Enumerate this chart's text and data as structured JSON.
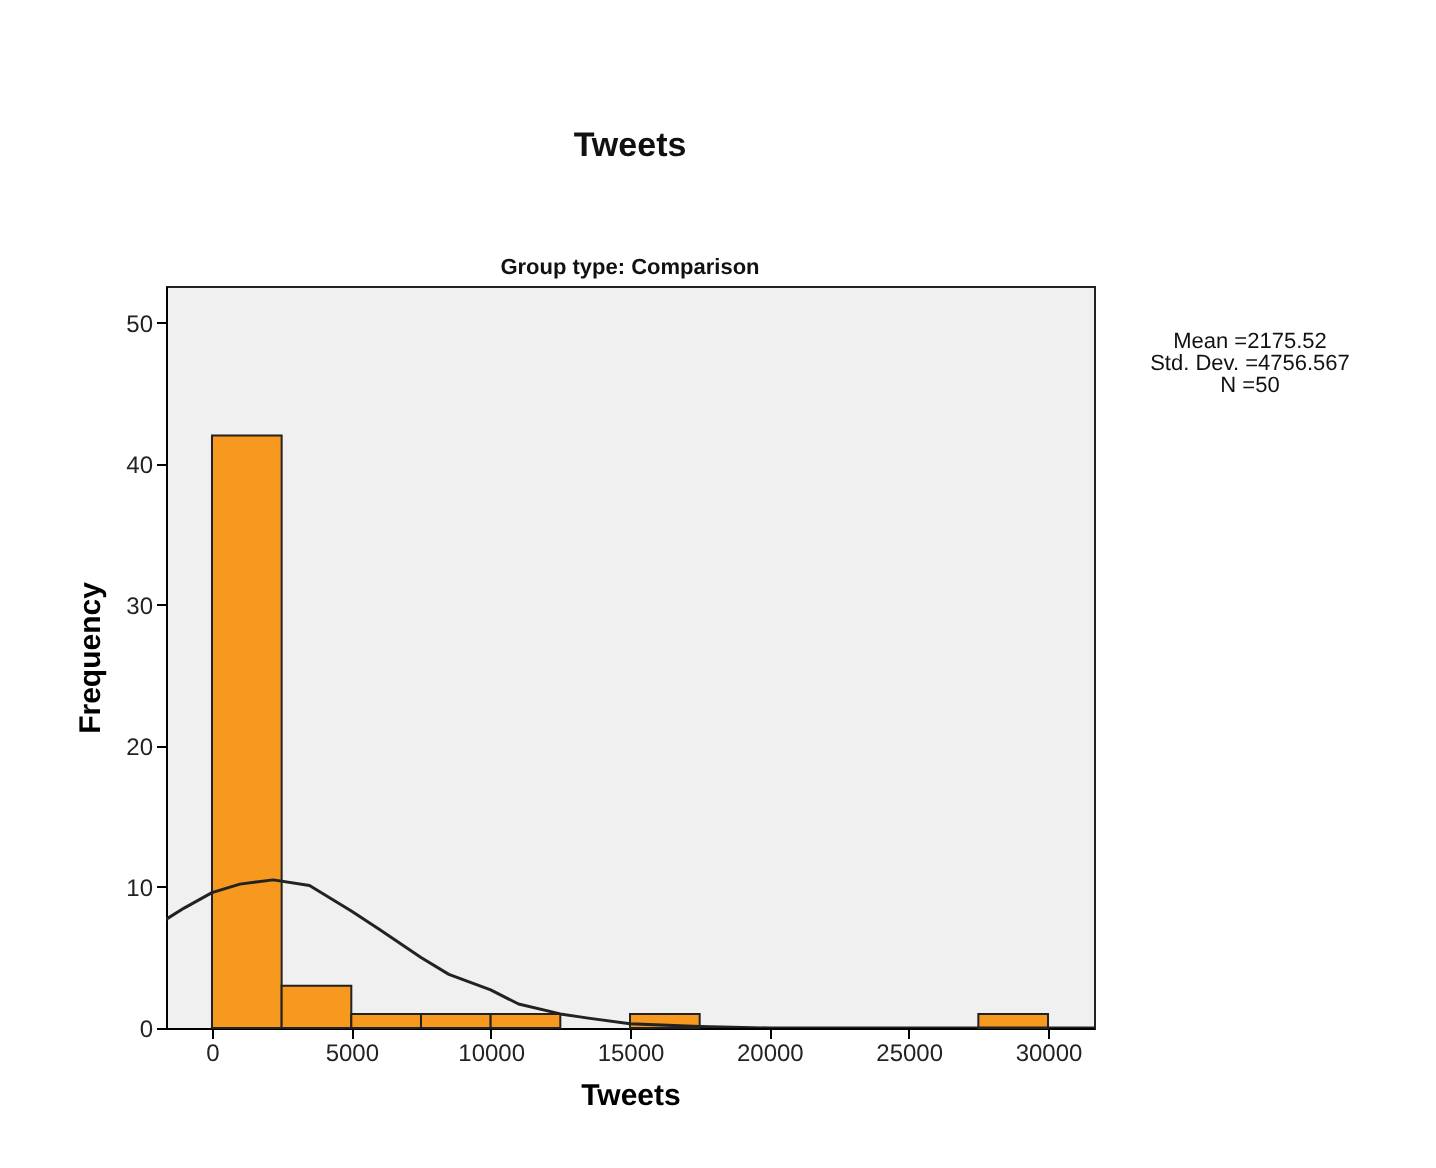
{
  "chart_data": {
    "type": "histogram",
    "title": "Tweets",
    "subtitle": "Group type: Comparison",
    "xlabel": "Tweets",
    "ylabel": "Frequency",
    "bins": [
      0,
      2500,
      5000,
      7500,
      10000,
      12500,
      15000,
      17500,
      20000,
      22500,
      25000,
      27500,
      30000
    ],
    "values": [
      42,
      3,
      1,
      1,
      1,
      0,
      1,
      0,
      0,
      0,
      0,
      1
    ],
    "color": "#f7991f",
    "series": [
      {
        "type": "line",
        "color": "#222222",
        "x": [
          -1650,
          -1000,
          0,
          1000,
          2200,
          3500,
          5000,
          6000,
          7500,
          8500,
          10000,
          11000,
          12500,
          13500,
          15000,
          17500,
          20000,
          25000,
          31650
        ],
        "values": [
          7.7,
          8.5,
          9.6,
          10.2,
          10.5,
          10.1,
          8.3,
          7.0,
          5.0,
          3.8,
          2.7,
          1.7,
          1.0,
          0.7,
          0.3,
          0.1,
          0,
          0,
          0
        ]
      }
    ],
    "xlim": [
      -1650,
      31650
    ],
    "xticks": [
      0,
      5000,
      10000,
      15000,
      20000,
      25000,
      30000
    ],
    "ylim": [
      0,
      52.6
    ],
    "yticks": [
      0,
      10,
      20,
      30,
      40,
      50
    ],
    "grid": false,
    "annotations": [
      "Mean =2175.52",
      "Std. Dev. =4756.567",
      "N =50"
    ]
  }
}
